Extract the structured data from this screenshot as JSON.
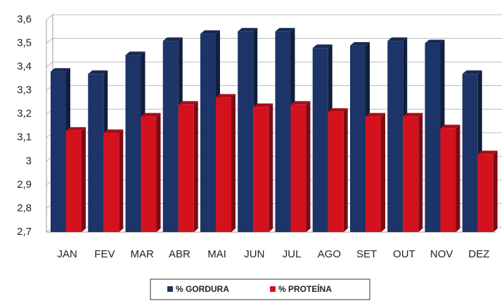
{
  "chart_data": {
    "type": "bar",
    "categories": [
      "JAN",
      "FEV",
      "MAR",
      "ABR",
      "MAI",
      "JUN",
      "JUL",
      "AGO",
      "SET",
      "OUT",
      "NOV",
      "DEZ"
    ],
    "series": [
      {
        "name": "% GORDURA",
        "color": "#1c3468",
        "values": [
          3.38,
          3.37,
          3.45,
          3.51,
          3.54,
          3.55,
          3.55,
          3.48,
          3.49,
          3.51,
          3.5,
          3.37
        ]
      },
      {
        "name": "% PROTEÍNA",
        "color": "#d4121e",
        "values": [
          3.13,
          3.12,
          3.19,
          3.24,
          3.27,
          3.23,
          3.24,
          3.21,
          3.19,
          3.19,
          3.14,
          3.03
        ]
      }
    ],
    "ylim": [
      2.7,
      3.6
    ],
    "yticks": [
      {
        "value": 2.7,
        "label": "2,7"
      },
      {
        "value": 2.8,
        "label": "2,8"
      },
      {
        "value": 2.9,
        "label": "2,9"
      },
      3,
      {
        "value": 3.1,
        "label": "3,1"
      },
      {
        "value": 3.2,
        "label": "3,2"
      },
      {
        "value": 3.3,
        "label": "3,3"
      },
      {
        "value": 3.4,
        "label": "3,4"
      },
      {
        "value": 3.5,
        "label": "3,5"
      },
      {
        "value": 3.6,
        "label": "3,6"
      }
    ],
    "grid": true,
    "legend": "bottom"
  }
}
